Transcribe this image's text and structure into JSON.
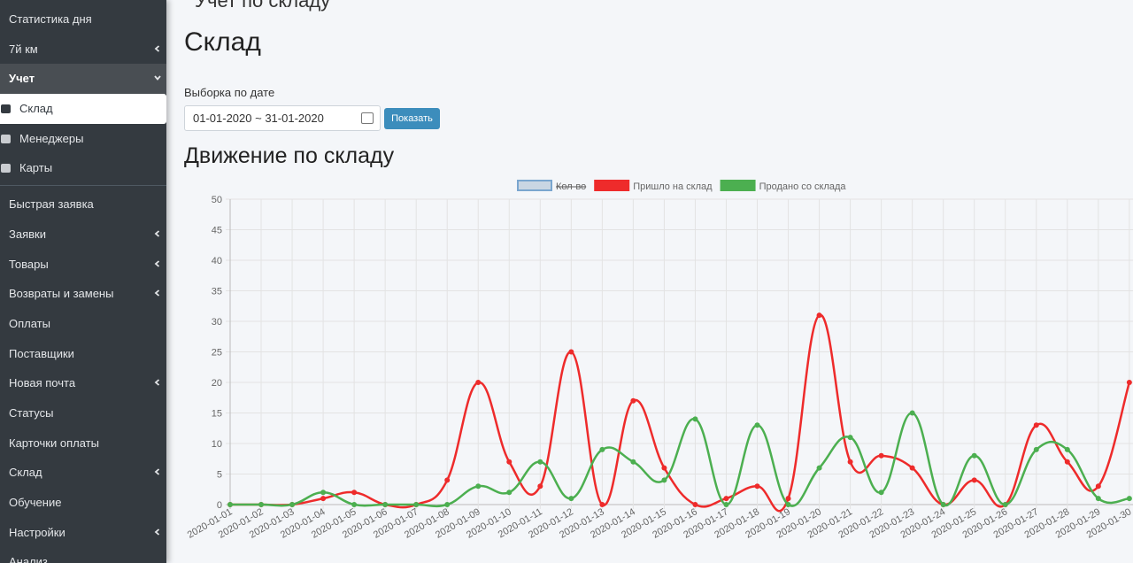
{
  "sidebar": {
    "items": [
      {
        "label": "Статистика дня"
      },
      {
        "label": "7й км",
        "has_children": true
      },
      {
        "label": "Учет",
        "has_children": true,
        "open": true,
        "children": [
          {
            "label": "Склад",
            "active": true
          },
          {
            "label": "Менеджеры"
          },
          {
            "label": "Карты"
          }
        ]
      },
      {
        "label": "Быстрая заявка"
      },
      {
        "label": "Заявки",
        "has_children": true
      },
      {
        "label": "Товары",
        "has_children": true
      },
      {
        "label": "Возвраты и замены",
        "has_children": true
      },
      {
        "label": "Оплаты"
      },
      {
        "label": "Поставщики"
      },
      {
        "label": "Новая почта",
        "has_children": true
      },
      {
        "label": "Статусы"
      },
      {
        "label": "Карточки оплаты"
      },
      {
        "label": "Склад",
        "has_children": true
      },
      {
        "label": "Обучение"
      },
      {
        "label": "Настройки",
        "has_children": true
      },
      {
        "label": "Анализ"
      }
    ]
  },
  "breadcrumb": "Учет по складу",
  "page_title": "Склад",
  "filter": {
    "label": "Выборка по дате",
    "date_range": "01-01-2020 ~ 31-01-2020",
    "button": "Показать"
  },
  "section_title": "Движение по складу",
  "chart_data": {
    "type": "line",
    "legend_hidden": [
      {
        "name": "Кол-во",
        "color": "#c9d6e3",
        "border": "#7aa6cf"
      }
    ],
    "categories": [
      "2020-01-01",
      "2020-01-02",
      "2020-01-03",
      "2020-01-04",
      "2020-01-05",
      "2020-01-06",
      "2020-01-07",
      "2020-01-08",
      "2020-01-09",
      "2020-01-10",
      "2020-01-11",
      "2020-01-12",
      "2020-01-13",
      "2020-01-14",
      "2020-01-15",
      "2020-01-16",
      "2020-01-17",
      "2020-01-18",
      "2020-01-19",
      "2020-01-20",
      "2020-01-21",
      "2020-01-22",
      "2020-01-23",
      "2020-01-24",
      "2020-01-25",
      "2020-01-26",
      "2020-01-27",
      "2020-01-28",
      "2020-01-29",
      "2020-01-30"
    ],
    "series": [
      {
        "name": "Пришло на склад",
        "color": "#ee2b2b",
        "values": [
          0,
          0,
          0,
          1,
          2,
          0,
          0,
          4,
          20,
          7,
          3,
          25,
          0,
          17,
          6,
          0,
          1,
          3,
          1,
          31,
          7,
          8,
          6,
          0,
          4,
          0,
          13,
          7,
          3,
          20
        ]
      },
      {
        "name": "Продано со склада",
        "color": "#4caf50",
        "values": [
          0,
          0,
          0,
          2,
          0,
          0,
          0,
          0,
          3,
          2,
          7,
          1,
          9,
          7,
          4,
          14,
          0,
          13,
          0,
          6,
          11,
          2,
          15,
          0,
          8,
          0,
          9,
          9,
          1,
          1
        ]
      }
    ],
    "ylim": [
      0,
      50
    ],
    "yticks": [
      0,
      5,
      10,
      15,
      20,
      25,
      30,
      35,
      40,
      45,
      50
    ],
    "grid": true
  }
}
